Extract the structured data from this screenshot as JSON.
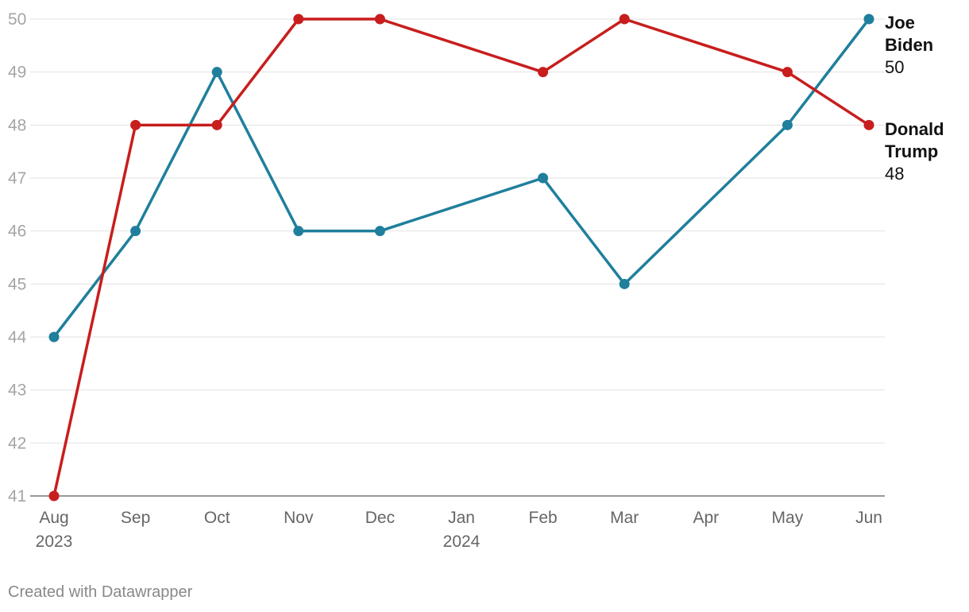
{
  "chart_data": {
    "type": "line",
    "title": "",
    "xlabel": "",
    "ylabel": "",
    "ylim": [
      41,
      50
    ],
    "yticks": [
      41,
      42,
      43,
      44,
      45,
      46,
      47,
      48,
      49,
      50
    ],
    "x_ticks": [
      {
        "label": "Aug",
        "sublabel": "2023"
      },
      {
        "label": "Sep",
        "sublabel": ""
      },
      {
        "label": "Oct",
        "sublabel": ""
      },
      {
        "label": "Nov",
        "sublabel": ""
      },
      {
        "label": "Dec",
        "sublabel": ""
      },
      {
        "label": "Jan",
        "sublabel": "2024"
      },
      {
        "label": "Feb",
        "sublabel": ""
      },
      {
        "label": "Mar",
        "sublabel": ""
      },
      {
        "label": "Apr",
        "sublabel": ""
      },
      {
        "label": "May",
        "sublabel": ""
      },
      {
        "label": "Jun",
        "sublabel": ""
      }
    ],
    "grid": true,
    "series": [
      {
        "name": "Joe Biden",
        "name_lines": [
          "Joe",
          "Biden"
        ],
        "end_label": "50",
        "color": "#1f7f9c",
        "points": [
          {
            "month": "Aug",
            "value": 44
          },
          {
            "month": "Sep",
            "value": 46
          },
          {
            "month": "Oct",
            "value": 49
          },
          {
            "month": "Nov",
            "value": 46
          },
          {
            "month": "Dec",
            "value": 46
          },
          {
            "month": "Feb",
            "value": 47
          },
          {
            "month": "Mar",
            "value": 45
          },
          {
            "month": "May",
            "value": 48
          },
          {
            "month": "Jun",
            "value": 50
          }
        ]
      },
      {
        "name": "Donald Trump",
        "name_lines": [
          "Donald",
          "Trump"
        ],
        "end_label": "48",
        "color": "#c71e1d",
        "points": [
          {
            "month": "Aug",
            "value": 41
          },
          {
            "month": "Sep",
            "value": 48
          },
          {
            "month": "Oct",
            "value": 48
          },
          {
            "month": "Nov",
            "value": 50
          },
          {
            "month": "Dec",
            "value": 50
          },
          {
            "month": "Feb",
            "value": 49
          },
          {
            "month": "Mar",
            "value": 50
          },
          {
            "month": "May",
            "value": 49
          },
          {
            "month": "Jun",
            "value": 48
          }
        ]
      }
    ]
  },
  "footer": {
    "credit": "Created with Datawrapper"
  }
}
